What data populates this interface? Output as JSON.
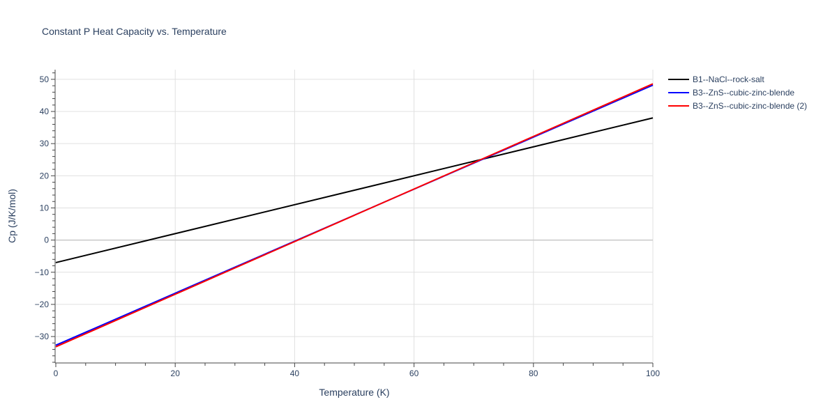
{
  "chart_data": {
    "type": "line",
    "title": "Constant P Heat Capacity vs. Temperature",
    "xlabel": "Temperature (K)",
    "ylabel": "Cp (J/K/mol)",
    "xlim": [
      0,
      100
    ],
    "ylim": [
      -38,
      53
    ],
    "x_ticks": [
      0,
      20,
      40,
      60,
      80,
      100
    ],
    "y_ticks": [
      -30,
      -20,
      -10,
      0,
      10,
      20,
      30,
      40,
      50
    ],
    "x_tick_labels": [
      "0",
      "20",
      "40",
      "60",
      "80",
      "100"
    ],
    "y_tick_labels": [
      "−30",
      "−20",
      "−10",
      "0",
      "10",
      "20",
      "30",
      "40",
      "50"
    ],
    "grid": true,
    "legend_position": "top-right outside",
    "series": [
      {
        "name": "B1--NaCl--rock-salt",
        "color": "#000000",
        "x": [
          0,
          100
        ],
        "y": [
          -7.0,
          38.0
        ]
      },
      {
        "name": "B3--ZnS--cubic-zinc-blende",
        "color": "#0000ff",
        "x": [
          0,
          100
        ],
        "y": [
          -32.7,
          48.2
        ]
      },
      {
        "name": "B3--ZnS--cubic-zinc-blende (2)",
        "color": "#ff0000",
        "x": [
          0,
          100
        ],
        "y": [
          -33.2,
          48.6
        ]
      }
    ]
  }
}
